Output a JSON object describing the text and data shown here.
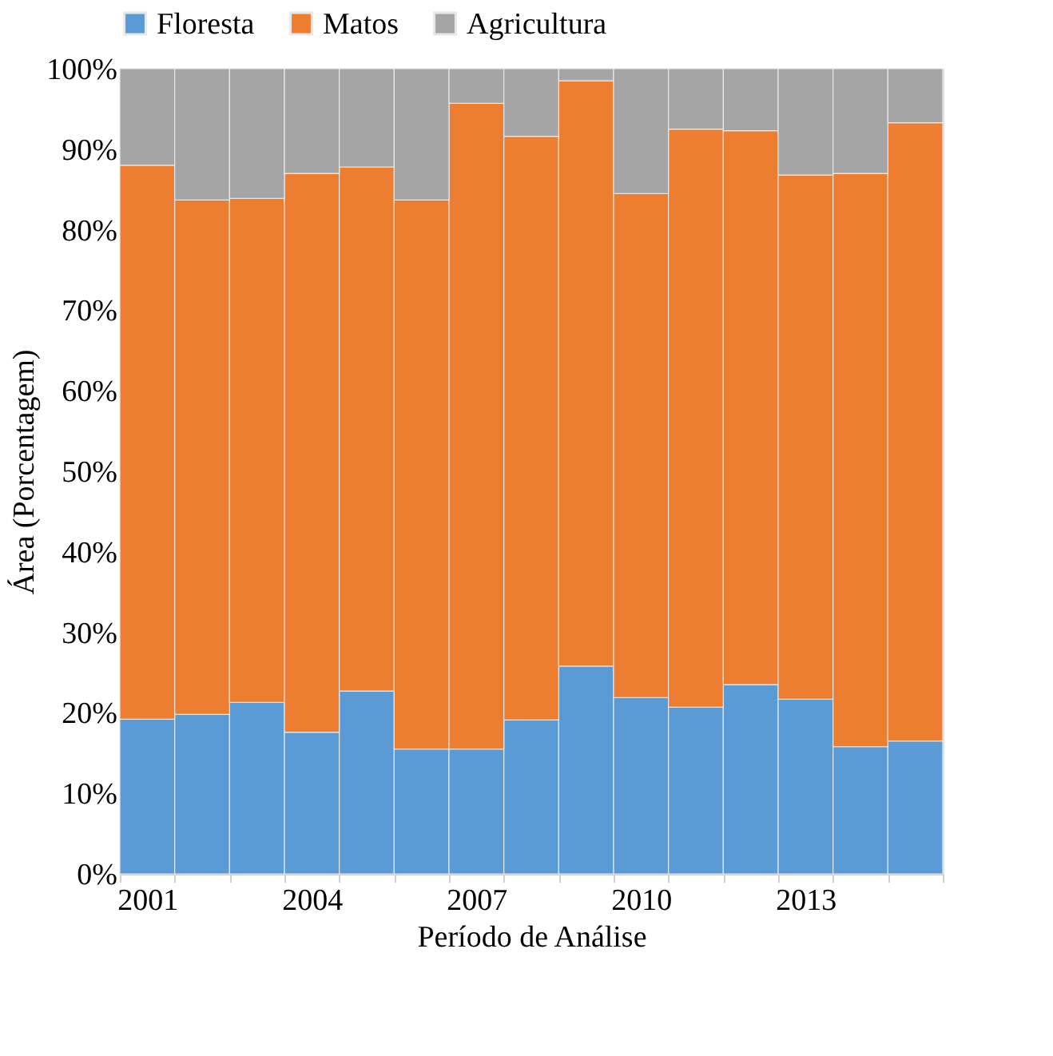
{
  "chart_data": {
    "type": "bar",
    "stacked": true,
    "xlabel": "Período de Análise",
    "ylabel": "Área (Porcentagem)",
    "categories": [
      "2001",
      null,
      null,
      "2004",
      null,
      null,
      "2007",
      null,
      null,
      "2010",
      null,
      null,
      "2013",
      null,
      null
    ],
    "series": [
      {
        "name": "Floresta",
        "color": "#5b9bd5",
        "values": [
          19.2,
          19.8,
          21.3,
          17.6,
          22.7,
          15.5,
          15.5,
          19.1,
          25.8,
          21.9,
          20.7,
          23.5,
          21.7,
          15.8,
          16.5
        ]
      },
      {
        "name": "Matos",
        "color": "#ed7d31",
        "values": [
          68.8,
          63.9,
          62.6,
          69.4,
          65.1,
          68.2,
          80.2,
          72.5,
          72.7,
          62.6,
          71.8,
          68.8,
          65.1,
          71.2,
          76.8
        ]
      },
      {
        "name": "Agricultura",
        "color": "#a5a5a5",
        "values": [
          12.0,
          16.3,
          16.1,
          13.0,
          12.2,
          16.3,
          4.3,
          8.4,
          1.5,
          15.5,
          7.5,
          7.7,
          13.2,
          13.0,
          6.7
        ]
      }
    ],
    "ylim": [
      0,
      100
    ],
    "yticks": [
      {
        "value": 0,
        "label": "0%"
      },
      {
        "value": 10,
        "label": "10%"
      },
      {
        "value": 20,
        "label": "20%"
      },
      {
        "value": 30,
        "label": "30%"
      },
      {
        "value": 40,
        "label": "40%"
      },
      {
        "value": 50,
        "label": "50%"
      },
      {
        "value": 60,
        "label": "60%"
      },
      {
        "value": 70,
        "label": "70%"
      },
      {
        "value": 80,
        "label": "80%"
      },
      {
        "value": 90,
        "label": "90%"
      },
      {
        "value": 100,
        "label": "100%"
      }
    ],
    "legend": "top"
  }
}
